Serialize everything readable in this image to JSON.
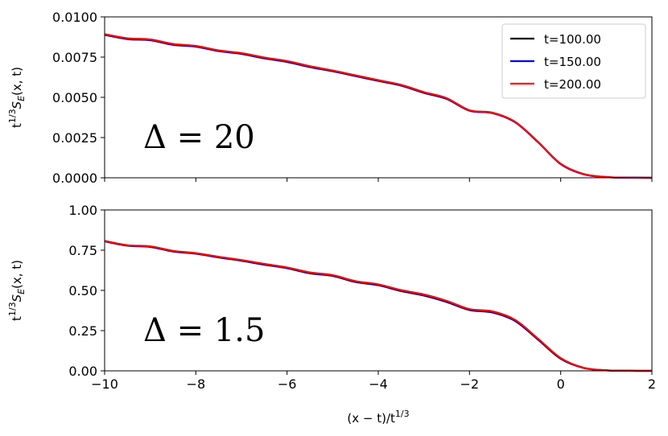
{
  "chart_data": [
    {
      "type": "line",
      "title": "",
      "xlabel": "",
      "ylabel": "t^{1/3} S_E(x, t)",
      "ylabel_parts": {
        "base": "t",
        "sup": "1/3",
        "s": "S",
        "sub": "E",
        "rest": "(x, t)"
      },
      "annotation": "Δ = 20",
      "xlim": [
        -10,
        2
      ],
      "ylim": [
        0,
        0.01
      ],
      "xticks": [
        -10,
        -8,
        -6,
        -4,
        -2,
        0,
        2
      ],
      "yticks": [
        "0.0000",
        "0.0025",
        "0.0050",
        "0.0075",
        "0.0100"
      ],
      "ytick_values": [
        0,
        0.0025,
        0.005,
        0.0075,
        0.01
      ],
      "legend_position": "top-right",
      "x": [
        -10,
        -9.5,
        -9,
        -8.5,
        -8,
        -7.5,
        -7,
        -6.5,
        -6,
        -5.5,
        -5,
        -4.5,
        -4,
        -3.5,
        -3,
        -2.5,
        -2,
        -1.5,
        -1,
        -0.5,
        0,
        0.5,
        1,
        1.5,
        2
      ],
      "series": [
        {
          "name": "t=100.00",
          "color": "#000000",
          "values": [
            0.00888,
            0.00862,
            0.00855,
            0.00826,
            0.00815,
            0.00787,
            0.0077,
            0.00742,
            0.0072,
            0.00688,
            0.00662,
            0.00632,
            0.00602,
            0.00573,
            0.00528,
            0.0049,
            0.00417,
            0.00402,
            0.00345,
            0.00222,
            0.00085,
            0.00022,
            4e-05,
            1e-05,
            0.0
          ]
        },
        {
          "name": "t=150.00",
          "color": "#0000ff",
          "values": [
            0.0089,
            0.00864,
            0.00857,
            0.00828,
            0.00817,
            0.00789,
            0.00772,
            0.00744,
            0.00722,
            0.0069,
            0.00664,
            0.00634,
            0.00604,
            0.00575,
            0.0053,
            0.00492,
            0.00418,
            0.00403,
            0.00346,
            0.00223,
            0.00086,
            0.00023,
            4e-05,
            1e-05,
            0.0
          ]
        },
        {
          "name": "t=200.00",
          "color": "#ff0000",
          "values": [
            0.00893,
            0.00867,
            0.0086,
            0.00832,
            0.0082,
            0.00792,
            0.00775,
            0.00748,
            0.00726,
            0.00694,
            0.00667,
            0.00637,
            0.00607,
            0.00578,
            0.00533,
            0.00495,
            0.0042,
            0.00405,
            0.00348,
            0.00225,
            0.00088,
            0.00024,
            5e-05,
            1e-05,
            0.0
          ]
        }
      ]
    },
    {
      "type": "line",
      "title": "",
      "xlabel": "(x − t)/t^{1/3}",
      "xlabel_parts": {
        "base": "(x − t)/t",
        "sup": "1/3"
      },
      "ylabel": "t^{1/3} S_E(x, t)",
      "ylabel_parts": {
        "base": "t",
        "sup": "1/3",
        "s": "S",
        "sub": "E",
        "rest": "(x, t)"
      },
      "annotation": "Δ = 1.5",
      "xlim": [
        -10,
        2
      ],
      "ylim": [
        0,
        1
      ],
      "xticks": [
        -10,
        -8,
        -6,
        -4,
        -2,
        0,
        2
      ],
      "xtick_labels": [
        "−10",
        "−8",
        "−6",
        "−4",
        "−2",
        "0",
        "2"
      ],
      "yticks": [
        "0.00",
        "0.25",
        "0.50",
        "0.75",
        "1.00"
      ],
      "ytick_values": [
        0,
        0.25,
        0.5,
        0.75,
        1.0
      ],
      "x": [
        -10,
        -9.5,
        -9,
        -8.5,
        -8,
        -7.5,
        -7,
        -6.5,
        -6,
        -5.5,
        -5,
        -4.5,
        -4,
        -3.5,
        -3,
        -2.5,
        -2,
        -1.5,
        -1,
        -0.5,
        0,
        0.5,
        1,
        1.5,
        2
      ],
      "series": [
        {
          "name": "t=100.00",
          "color": "#000000",
          "values": [
            0.805,
            0.778,
            0.77,
            0.742,
            0.728,
            0.705,
            0.684,
            0.66,
            0.638,
            0.606,
            0.59,
            0.552,
            0.532,
            0.496,
            0.468,
            0.428,
            0.378,
            0.363,
            0.31,
            0.195,
            0.075,
            0.018,
            0.003,
            0.0005,
            0.0
          ]
        },
        {
          "name": "t=150.00",
          "color": "#0000ff",
          "values": [
            0.807,
            0.78,
            0.772,
            0.744,
            0.73,
            0.707,
            0.686,
            0.662,
            0.64,
            0.609,
            0.592,
            0.555,
            0.535,
            0.499,
            0.471,
            0.431,
            0.381,
            0.366,
            0.313,
            0.198,
            0.078,
            0.019,
            0.003,
            0.0005,
            0.0
          ]
        },
        {
          "name": "t=200.00",
          "color": "#ff0000",
          "values": [
            0.808,
            0.781,
            0.774,
            0.746,
            0.732,
            0.709,
            0.689,
            0.665,
            0.643,
            0.612,
            0.595,
            0.558,
            0.538,
            0.502,
            0.475,
            0.435,
            0.384,
            0.37,
            0.317,
            0.201,
            0.08,
            0.02,
            0.004,
            0.0006,
            0.0
          ]
        }
      ]
    }
  ]
}
